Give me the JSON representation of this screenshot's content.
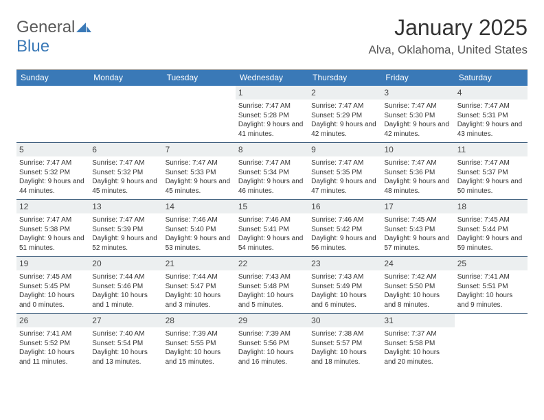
{
  "logo": {
    "text1": "General",
    "text2": "Blue"
  },
  "title": "January 2025",
  "location": "Alva, Oklahoma, United States",
  "colors": {
    "header_bar": "#3a79b7",
    "daynum_bg": "#eceff0",
    "week_border": "#3a5a7a",
    "top_border": "#999999",
    "logo_gray": "#5a5a5a",
    "logo_blue": "#3a79b7",
    "text": "#333333"
  },
  "weekdays": [
    "Sunday",
    "Monday",
    "Tuesday",
    "Wednesday",
    "Thursday",
    "Friday",
    "Saturday"
  ],
  "weeks": [
    [
      null,
      null,
      null,
      {
        "n": "1",
        "sr": "7:47 AM",
        "ss": "5:28 PM",
        "dl": "9 hours and 41 minutes."
      },
      {
        "n": "2",
        "sr": "7:47 AM",
        "ss": "5:29 PM",
        "dl": "9 hours and 42 minutes."
      },
      {
        "n": "3",
        "sr": "7:47 AM",
        "ss": "5:30 PM",
        "dl": "9 hours and 42 minutes."
      },
      {
        "n": "4",
        "sr": "7:47 AM",
        "ss": "5:31 PM",
        "dl": "9 hours and 43 minutes."
      }
    ],
    [
      {
        "n": "5",
        "sr": "7:47 AM",
        "ss": "5:32 PM",
        "dl": "9 hours and 44 minutes."
      },
      {
        "n": "6",
        "sr": "7:47 AM",
        "ss": "5:32 PM",
        "dl": "9 hours and 45 minutes."
      },
      {
        "n": "7",
        "sr": "7:47 AM",
        "ss": "5:33 PM",
        "dl": "9 hours and 45 minutes."
      },
      {
        "n": "8",
        "sr": "7:47 AM",
        "ss": "5:34 PM",
        "dl": "9 hours and 46 minutes."
      },
      {
        "n": "9",
        "sr": "7:47 AM",
        "ss": "5:35 PM",
        "dl": "9 hours and 47 minutes."
      },
      {
        "n": "10",
        "sr": "7:47 AM",
        "ss": "5:36 PM",
        "dl": "9 hours and 48 minutes."
      },
      {
        "n": "11",
        "sr": "7:47 AM",
        "ss": "5:37 PM",
        "dl": "9 hours and 50 minutes."
      }
    ],
    [
      {
        "n": "12",
        "sr": "7:47 AM",
        "ss": "5:38 PM",
        "dl": "9 hours and 51 minutes."
      },
      {
        "n": "13",
        "sr": "7:47 AM",
        "ss": "5:39 PM",
        "dl": "9 hours and 52 minutes."
      },
      {
        "n": "14",
        "sr": "7:46 AM",
        "ss": "5:40 PM",
        "dl": "9 hours and 53 minutes."
      },
      {
        "n": "15",
        "sr": "7:46 AM",
        "ss": "5:41 PM",
        "dl": "9 hours and 54 minutes."
      },
      {
        "n": "16",
        "sr": "7:46 AM",
        "ss": "5:42 PM",
        "dl": "9 hours and 56 minutes."
      },
      {
        "n": "17",
        "sr": "7:45 AM",
        "ss": "5:43 PM",
        "dl": "9 hours and 57 minutes."
      },
      {
        "n": "18",
        "sr": "7:45 AM",
        "ss": "5:44 PM",
        "dl": "9 hours and 59 minutes."
      }
    ],
    [
      {
        "n": "19",
        "sr": "7:45 AM",
        "ss": "5:45 PM",
        "dl": "10 hours and 0 minutes."
      },
      {
        "n": "20",
        "sr": "7:44 AM",
        "ss": "5:46 PM",
        "dl": "10 hours and 1 minute."
      },
      {
        "n": "21",
        "sr": "7:44 AM",
        "ss": "5:47 PM",
        "dl": "10 hours and 3 minutes."
      },
      {
        "n": "22",
        "sr": "7:43 AM",
        "ss": "5:48 PM",
        "dl": "10 hours and 5 minutes."
      },
      {
        "n": "23",
        "sr": "7:43 AM",
        "ss": "5:49 PM",
        "dl": "10 hours and 6 minutes."
      },
      {
        "n": "24",
        "sr": "7:42 AM",
        "ss": "5:50 PM",
        "dl": "10 hours and 8 minutes."
      },
      {
        "n": "25",
        "sr": "7:41 AM",
        "ss": "5:51 PM",
        "dl": "10 hours and 9 minutes."
      }
    ],
    [
      {
        "n": "26",
        "sr": "7:41 AM",
        "ss": "5:52 PM",
        "dl": "10 hours and 11 minutes."
      },
      {
        "n": "27",
        "sr": "7:40 AM",
        "ss": "5:54 PM",
        "dl": "10 hours and 13 minutes."
      },
      {
        "n": "28",
        "sr": "7:39 AM",
        "ss": "5:55 PM",
        "dl": "10 hours and 15 minutes."
      },
      {
        "n": "29",
        "sr": "7:39 AM",
        "ss": "5:56 PM",
        "dl": "10 hours and 16 minutes."
      },
      {
        "n": "30",
        "sr": "7:38 AM",
        "ss": "5:57 PM",
        "dl": "10 hours and 18 minutes."
      },
      {
        "n": "31",
        "sr": "7:37 AM",
        "ss": "5:58 PM",
        "dl": "10 hours and 20 minutes."
      },
      null
    ]
  ],
  "labels": {
    "sunrise": "Sunrise:",
    "sunset": "Sunset:",
    "daylight": "Daylight:"
  }
}
